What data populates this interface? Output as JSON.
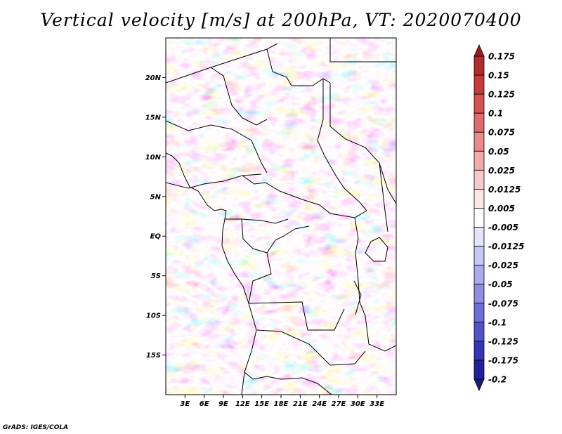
{
  "title": "Vertical velocity [m/s] at 200hPa, VT: 2020070400",
  "credit": "GrADS: IGES/COLA",
  "map": {
    "lon_range": [
      0,
      36
    ],
    "lat_range": [
      -20,
      25
    ],
    "lat_ticks": [
      {
        "value": 20,
        "label": "20N"
      },
      {
        "value": 15,
        "label": "15N"
      },
      {
        "value": 10,
        "label": "10N"
      },
      {
        "value": 5,
        "label": "5N"
      },
      {
        "value": 0,
        "label": "EQ"
      },
      {
        "value": -5,
        "label": "5S"
      },
      {
        "value": -10,
        "label": "10S"
      },
      {
        "value": -15,
        "label": "15S"
      }
    ],
    "lon_ticks": [
      {
        "value": 3,
        "label": "3E"
      },
      {
        "value": 6,
        "label": "6E"
      },
      {
        "value": 9,
        "label": "9E"
      },
      {
        "value": 12,
        "label": "12E"
      },
      {
        "value": 15,
        "label": "15E"
      },
      {
        "value": 18,
        "label": "18E"
      },
      {
        "value": 21,
        "label": "21E"
      },
      {
        "value": 24,
        "label": "24E"
      },
      {
        "value": 27,
        "label": "27E"
      },
      {
        "value": 30,
        "label": "30E"
      },
      {
        "value": 33,
        "label": "33E"
      }
    ]
  },
  "colorbar": {
    "levels": [
      "0.175",
      "0.15",
      "0.125",
      "0.1",
      "0.075",
      "0.05",
      "0.025",
      "0.0125",
      "0.005",
      "-0.005",
      "-0.0125",
      "-0.025",
      "-0.05",
      "-0.075",
      "-0.1",
      "-0.125",
      "-0.175",
      "-0.2"
    ],
    "colors": [
      "#a31b20",
      "#b52a2c",
      "#c73b3b",
      "#d65151",
      "#e06a6a",
      "#ea8a8a",
      "#f3aaaa",
      "#f8caca",
      "#fce6e6",
      "#ffffff",
      "#e4e4fa",
      "#c8c8f4",
      "#ababee",
      "#8d8de6",
      "#6f6fdc",
      "#5252cc",
      "#3535b6",
      "#21219c",
      "#1a1a80"
    ]
  }
}
